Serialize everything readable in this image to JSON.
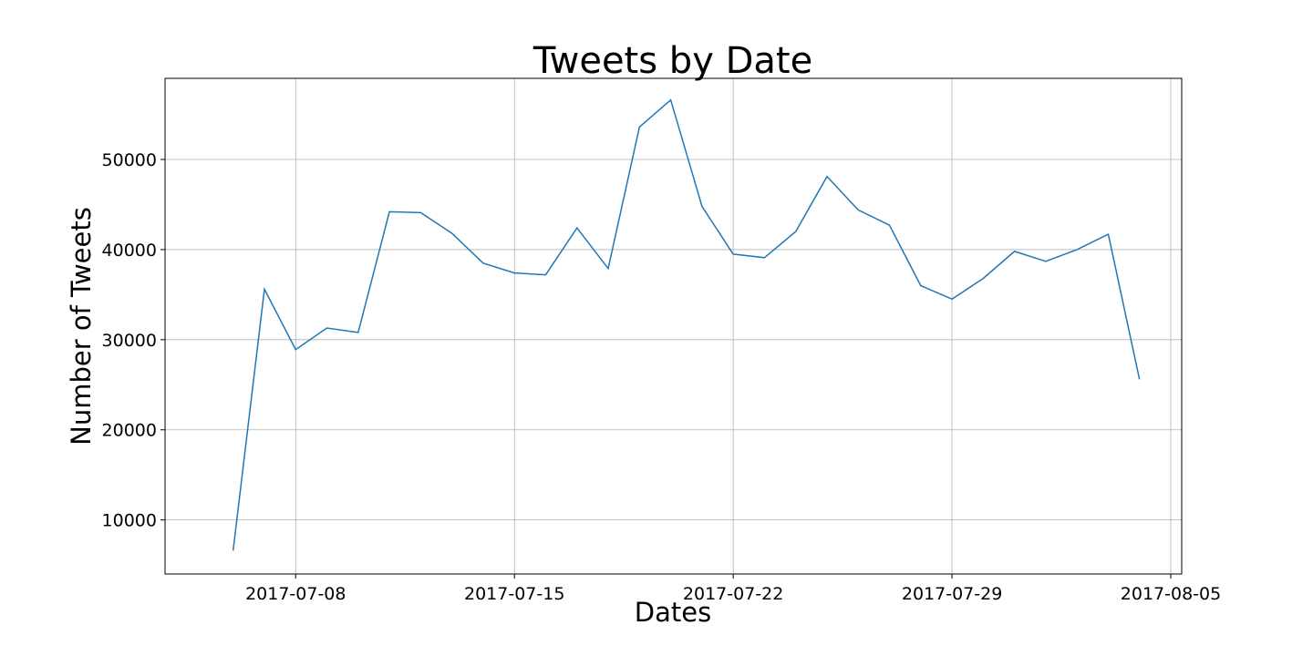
{
  "chart_data": {
    "type": "line",
    "title": "Tweets by Date",
    "xlabel": "Dates",
    "ylabel": "Number of Tweets",
    "grid": true,
    "x_ticks": [
      "2017-07-08",
      "2017-07-15",
      "2017-07-22",
      "2017-07-29",
      "2017-08-05"
    ],
    "y_ticks": [
      10000,
      20000,
      30000,
      40000,
      50000
    ],
    "xlim": [
      "2017-07-04",
      "2017-08-05"
    ],
    "ylim": [
      4000,
      59000
    ],
    "series": [
      {
        "color": "#1f77b4",
        "x": [
          "2017-07-06",
          "2017-07-07",
          "2017-07-08",
          "2017-07-09",
          "2017-07-10",
          "2017-07-11",
          "2017-07-12",
          "2017-07-13",
          "2017-07-14",
          "2017-07-15",
          "2017-07-16",
          "2017-07-17",
          "2017-07-18",
          "2017-07-19",
          "2017-07-20",
          "2017-07-21",
          "2017-07-22",
          "2017-07-23",
          "2017-07-24",
          "2017-07-25",
          "2017-07-26",
          "2017-07-27",
          "2017-07-28",
          "2017-07-29",
          "2017-07-30",
          "2017-07-31",
          "2017-08-01",
          "2017-08-02",
          "2017-08-03",
          "2017-08-04"
        ],
        "values": [
          6600,
          35600,
          28900,
          31300,
          30800,
          44200,
          44100,
          41800,
          38500,
          37400,
          37200,
          42400,
          37900,
          53600,
          56600,
          44800,
          39500,
          39100,
          42000,
          48100,
          44400,
          42700,
          36000,
          34500,
          36800,
          39800,
          38700,
          40000,
          41700,
          25600
        ]
      }
    ]
  }
}
